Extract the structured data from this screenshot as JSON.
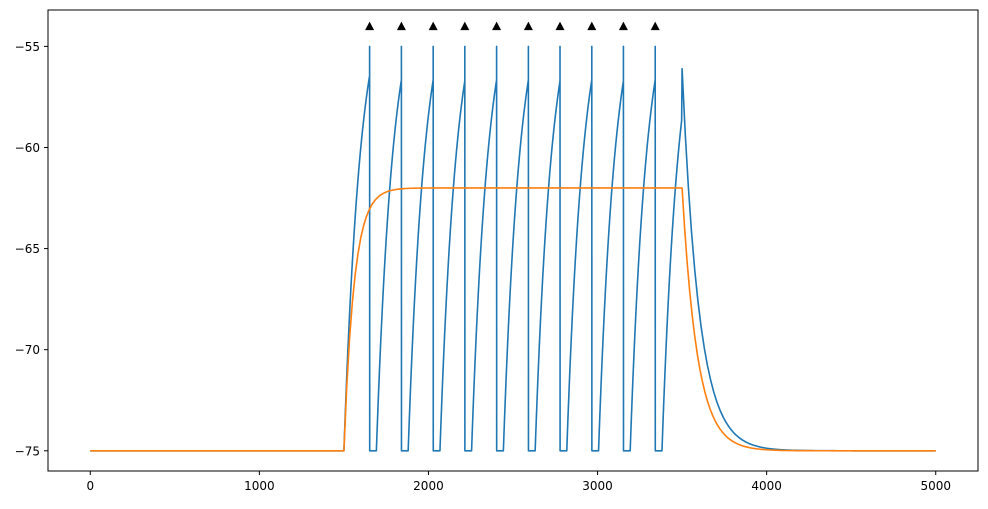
{
  "chart_data": {
    "type": "line",
    "title": "",
    "xlabel": "",
    "ylabel": "",
    "xlim": [
      -250,
      5250
    ],
    "ylim": [
      -76,
      -53.2
    ],
    "xticks": [
      0,
      1000,
      2000,
      3000,
      4000,
      5000
    ],
    "xtick_labels": [
      "0",
      "1000",
      "2000",
      "3000",
      "4000",
      "5000"
    ],
    "yticks": [
      -75,
      -70,
      -65,
      -60,
      -55
    ],
    "ytick_labels": [
      "−75",
      "−70",
      "−65",
      "−60",
      "−55"
    ],
    "grid": false,
    "legend": "none",
    "stimulus": {
      "on": 1500,
      "off": 3500
    },
    "resting_potential": -75,
    "series": [
      {
        "color": "#1f77b4",
        "description": "membrane potential with spike-and-reset",
        "threshold": -55,
        "reset": -75,
        "refractory_ms": 40,
        "tau_ms": 100,
        "input_level": -51.25,
        "post_stim_peak": -56.1,
        "spike_times": [
          1652,
          1840,
          2028,
          2215,
          2403,
          2591,
          2778,
          2966,
          3153,
          3341
        ]
      },
      {
        "color": "#ff7f0e",
        "description": "subthreshold (passive) membrane potential",
        "tau_ms": 60,
        "plateau": -62,
        "decay_tau_ms": 90
      }
    ],
    "markers": {
      "shape": "triangle-up",
      "color": "#000000",
      "y": -54,
      "x": [
        1652,
        1840,
        2028,
        2215,
        2403,
        2591,
        2778,
        2966,
        3153,
        3341
      ]
    }
  }
}
